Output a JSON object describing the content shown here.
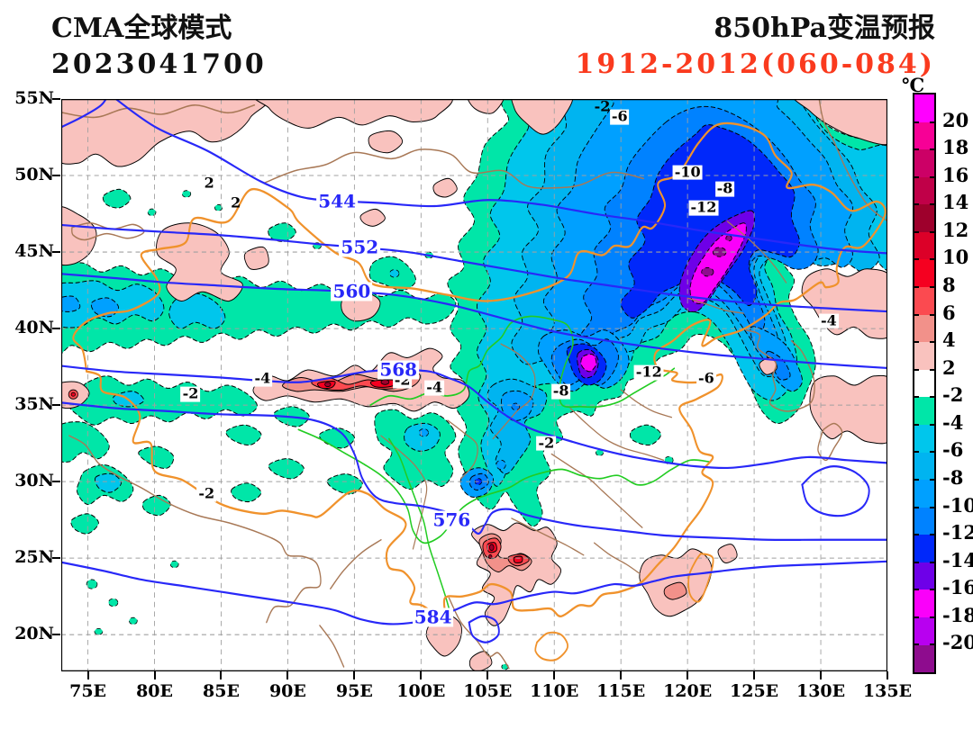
{
  "header": {
    "model_name": "CMA全球模式",
    "init_time": "2023041700",
    "product_name": "850hPa变温预报",
    "valid_range": "1912-2012(060-084)",
    "valid_color": "#fa3a1e"
  },
  "map": {
    "lon_min": 73,
    "lon_max": 135,
    "lat_min": 17.6,
    "lat_max": 55,
    "grid_step_deg": 5,
    "x_ticks": [
      {
        "lon": 75,
        "label": "75E"
      },
      {
        "lon": 80,
        "label": "80E"
      },
      {
        "lon": 85,
        "label": "85E"
      },
      {
        "lon": 90,
        "label": "90E"
      },
      {
        "lon": 95,
        "label": "95E"
      },
      {
        "lon": 100,
        "label": "100E"
      },
      {
        "lon": 105,
        "label": "105E"
      },
      {
        "lon": 110,
        "label": "110E"
      },
      {
        "lon": 115,
        "label": "115E"
      },
      {
        "lon": 120,
        "label": "120E"
      },
      {
        "lon": 125,
        "label": "125E"
      },
      {
        "lon": 130,
        "label": "130E"
      },
      {
        "lon": 135,
        "label": "135E"
      }
    ],
    "y_ticks": [
      {
        "lat": 55,
        "label": "55N"
      },
      {
        "lat": 50,
        "label": "50N"
      },
      {
        "lat": 45,
        "label": "45N"
      },
      {
        "lat": 40,
        "label": "40N"
      },
      {
        "lat": 35,
        "label": "35N"
      },
      {
        "lat": 30,
        "label": "30N"
      },
      {
        "lat": 25,
        "label": "25N"
      },
      {
        "lat": 20,
        "label": "20N"
      }
    ],
    "line_colors": {
      "height_contour": "#2828f8",
      "national_border": "#f0922c",
      "region_border": "#a87856",
      "river": "#22cc22",
      "grid": "#a0a0a0",
      "temp_contour": "#000000"
    }
  },
  "colorbar": {
    "unit": "℃",
    "tick_labels": [
      "20",
      "18",
      "16",
      "14",
      "12",
      "10",
      "8",
      "6",
      "4",
      "2",
      "-2",
      "-4",
      "-6",
      "-8",
      "-10",
      "-12",
      "-14",
      "-16",
      "-18",
      "-20"
    ],
    "colors": [
      "#ff00ff",
      "#f70096",
      "#cc0066",
      "#c00048",
      "#9e002c",
      "#dc0028",
      "#f50020",
      "#fb4a50",
      "#f2918a",
      "#f9c2be",
      "#ffffff",
      "#00e6a8",
      "#00c6ec",
      "#00b4f0",
      "#00a0ff",
      "#0082ff",
      "#0028fa",
      "#6e00e8",
      "#fa00fa",
      "#b800f0",
      "#8e0c8e"
    ]
  },
  "height_contours": {
    "labels": [
      {
        "text": "544",
        "lon": 93.7,
        "lat": 48.3
      },
      {
        "text": "552",
        "lon": 95.4,
        "lat": 45.3
      },
      {
        "text": "560",
        "lon": 94.8,
        "lat": 42.4
      },
      {
        "text": "568",
        "lon": 98.3,
        "lat": 37.3
      },
      {
        "text": "576",
        "lon": 102.3,
        "lat": 27.5
      },
      {
        "text": "584",
        "lon": 100.9,
        "lat": 21.1
      }
    ]
  },
  "change_contours": {
    "labels": [
      {
        "text": "2",
        "lon": 84.1,
        "lat": 49.5,
        "box": false
      },
      {
        "text": "2",
        "lon": 86.1,
        "lat": 48.2,
        "box": false
      },
      {
        "text": "-2",
        "lon": 113.6,
        "lat": 54.5,
        "box": false
      },
      {
        "text": "-6",
        "lon": 114.9,
        "lat": 53.8,
        "box": true
      },
      {
        "text": "-10",
        "lon": 120.0,
        "lat": 50.2,
        "box": true
      },
      {
        "text": "-8",
        "lon": 122.8,
        "lat": 49.1,
        "box": true
      },
      {
        "text": "-12",
        "lon": 121.2,
        "lat": 47.9,
        "box": true
      },
      {
        "text": "-4",
        "lon": 130.6,
        "lat": 40.5,
        "box": true
      },
      {
        "text": "-12",
        "lon": 117.1,
        "lat": 37.1,
        "box": true
      },
      {
        "text": "-6",
        "lon": 121.4,
        "lat": 36.7,
        "box": true
      },
      {
        "text": "-8",
        "lon": 110.5,
        "lat": 35.9,
        "box": true
      },
      {
        "text": "-2",
        "lon": 98.6,
        "lat": 36.6,
        "box": true
      },
      {
        "text": "-4",
        "lon": 101.0,
        "lat": 36.1,
        "box": true
      },
      {
        "text": "-4",
        "lon": 88.1,
        "lat": 36.7,
        "box": true
      },
      {
        "text": "-2",
        "lon": 82.7,
        "lat": 35.7,
        "box": true
      },
      {
        "text": "-2",
        "lon": 109.4,
        "lat": 32.5,
        "box": true
      },
      {
        "text": "-2",
        "lon": 83.9,
        "lat": 29.2,
        "box": true
      }
    ]
  }
}
